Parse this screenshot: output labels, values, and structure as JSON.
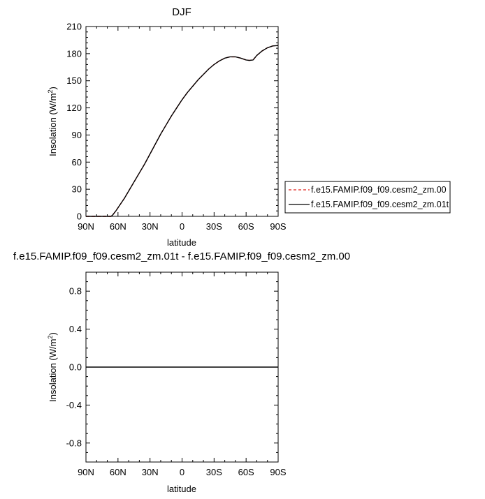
{
  "chart_data": [
    {
      "type": "line",
      "title": "DJF",
      "xlabel": "latitude",
      "ylabel": "Insolation (W/m²)",
      "ylabel_base": "Insolation (W/m",
      "ylabel_sup": "2",
      "ylabel_close": ")",
      "xlim": [
        90,
        -90
      ],
      "ylim": [
        0,
        210
      ],
      "xticks": [
        90,
        60,
        30,
        0,
        -30,
        -60,
        -90
      ],
      "xtick_labels": [
        "90N",
        "60N",
        "30N",
        "0",
        "30S",
        "60S",
        "90S"
      ],
      "yticks": [
        0,
        30,
        60,
        90,
        120,
        150,
        180,
        210
      ],
      "ytick_labels": [
        "0",
        "30",
        "60",
        "90",
        "120",
        "150",
        "180",
        "210"
      ],
      "grid": false,
      "legend_position": "right-middle",
      "series": [
        {
          "name": "f.e15.FAMIP.f09_f09.cesm2_zm.00",
          "color": "#e0201b",
          "dash": "dashed",
          "x": [
            90,
            70,
            68,
            66.5,
            65,
            62,
            58,
            54,
            50,
            45,
            40,
            35,
            30,
            25,
            20,
            15,
            10,
            5,
            0,
            -5,
            -10,
            -15,
            -20,
            -25,
            -30,
            -35,
            -40,
            -45,
            -50,
            -55,
            -60,
            -63,
            -66.5,
            -70,
            -75,
            -80,
            -85,
            -90
          ],
          "y": [
            0,
            0,
            0,
            0,
            1.5,
            6,
            13,
            20,
            28,
            38,
            48,
            58,
            69,
            80,
            91,
            101,
            111,
            120,
            129,
            137,
            144,
            151,
            157,
            163,
            168,
            172,
            175,
            176.5,
            176.5,
            175,
            173,
            172.5,
            173,
            178,
            183,
            186.5,
            188.5,
            189
          ]
        },
        {
          "name": "f.e15.FAMIP.f09_f09.cesm2_zm.01t",
          "color": "#000000",
          "dash": "solid",
          "x": [
            90,
            70,
            68,
            66.5,
            65,
            62,
            58,
            54,
            50,
            45,
            40,
            35,
            30,
            25,
            20,
            15,
            10,
            5,
            0,
            -5,
            -10,
            -15,
            -20,
            -25,
            -30,
            -35,
            -40,
            -45,
            -50,
            -55,
            -60,
            -63,
            -66.5,
            -70,
            -75,
            -80,
            -85,
            -90
          ],
          "y": [
            0,
            0,
            0,
            0,
            1.5,
            6,
            13,
            20,
            28,
            38,
            48,
            58,
            69,
            80,
            91,
            101,
            111,
            120,
            129,
            137,
            144,
            151,
            157,
            163,
            168,
            172,
            175,
            176.5,
            176.5,
            175,
            173,
            172.5,
            173,
            178,
            183,
            186.5,
            188.5,
            189
          ]
        }
      ]
    },
    {
      "type": "line",
      "title": "f.e15.FAMIP.f09_f09.cesm2_zm.01t - f.e15.FAMIP.f09_f09.cesm2_zm.00",
      "xlabel": "latitude",
      "ylabel": "Insolation (W/m²)",
      "ylabel_base": "Insolation (W/m",
      "ylabel_sup": "2",
      "ylabel_close": ")",
      "xlim": [
        90,
        -90
      ],
      "ylim": [
        -1,
        1
      ],
      "xticks": [
        90,
        60,
        30,
        0,
        -30,
        -60,
        -90
      ],
      "xtick_labels": [
        "90N",
        "60N",
        "30N",
        "0",
        "30S",
        "60S",
        "90S"
      ],
      "yticks": [
        -0.8,
        -0.4,
        0.0,
        0.4,
        0.8
      ],
      "ytick_labels": [
        "-0.8",
        "-0.4",
        "0.0",
        "0.4",
        "0.8"
      ],
      "grid": false,
      "series": [
        {
          "color": "#000000",
          "dash": "solid",
          "x": [
            90,
            -90
          ],
          "y": [
            0,
            0
          ]
        }
      ]
    }
  ]
}
